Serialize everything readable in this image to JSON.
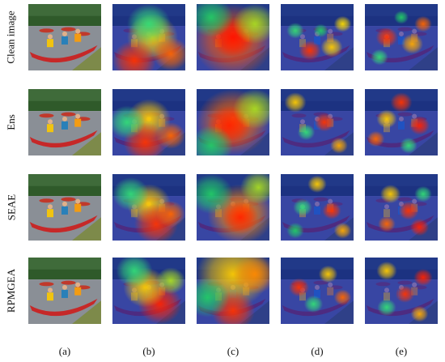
{
  "figure": {
    "rows": [
      {
        "label": "Clean image"
      },
      {
        "label": "Ens"
      },
      {
        "label": "SEAE"
      },
      {
        "label": "RPMGEA"
      }
    ],
    "columns": [
      {
        "label": "(a)",
        "kind": "photo"
      },
      {
        "label": "(b)",
        "kind": "heatmap"
      },
      {
        "label": "(c)",
        "kind": "heatmap"
      },
      {
        "label": "(d)",
        "kind": "heatmap"
      },
      {
        "label": "(e)",
        "kind": "heatmap"
      }
    ]
  }
}
